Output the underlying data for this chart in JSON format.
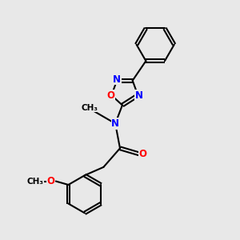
{
  "background_color": "#e8e8e8",
  "atom_color_C": "#000000",
  "atom_color_N": "#0000ff",
  "atom_color_O": "#ff0000",
  "bond_color": "#000000",
  "fig_size": [
    3.0,
    3.0
  ],
  "dpi": 100,
  "xlim": [
    0,
    10
  ],
  "ylim": [
    0,
    10
  ]
}
